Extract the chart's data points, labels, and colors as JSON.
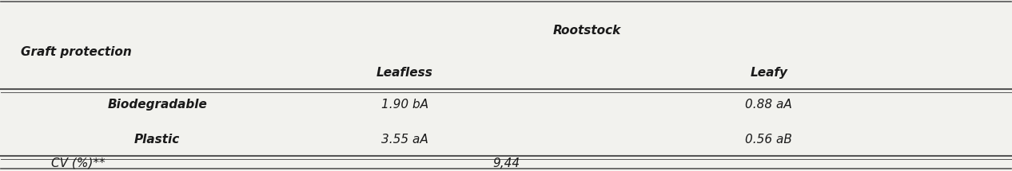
{
  "col_header_top": "Rootstock",
  "col_header_sub_left": "Leafless",
  "col_header_sub_right": "Leafy",
  "row_header_label": "Graft protection",
  "rows": [
    {
      "label": "Biodegradable",
      "leafless": "1.90 bA",
      "leafy": "0.88 aA"
    },
    {
      "label": "Plastic",
      "leafless": "3.55 aA",
      "leafy": "0.56 aB"
    }
  ],
  "cv_label": "CV (%)**",
  "cv_value": "9,44",
  "background_color": "#f2f2ee",
  "text_color": "#1a1a1a",
  "font_size": 11
}
